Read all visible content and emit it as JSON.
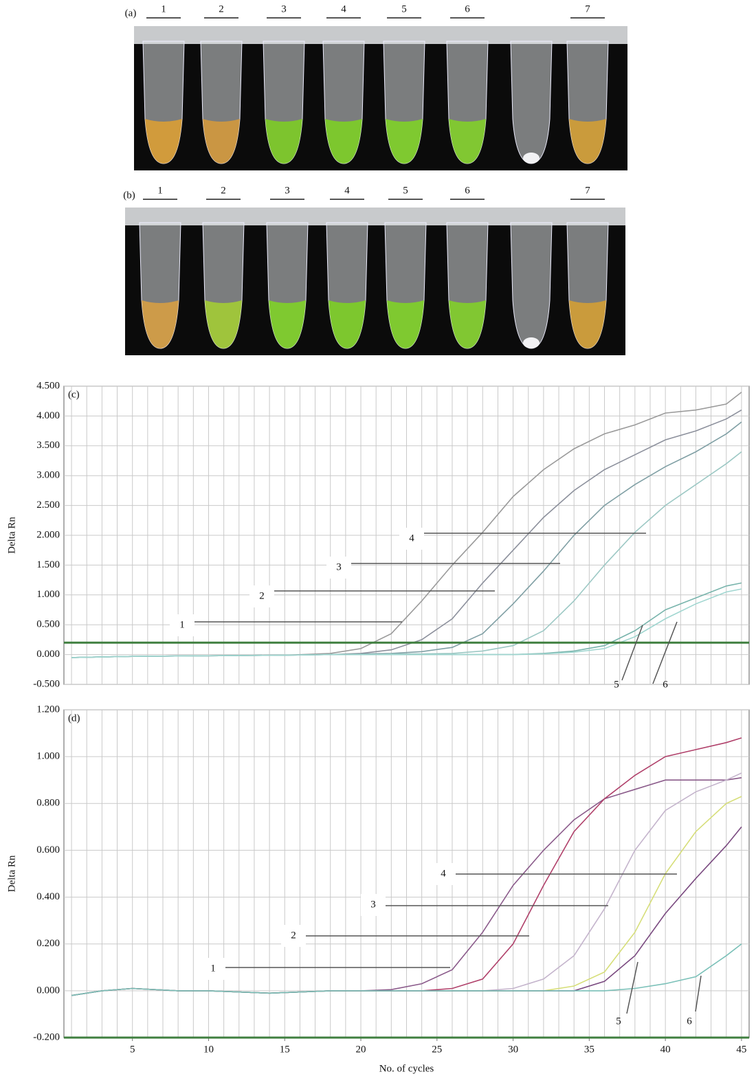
{
  "panels": [
    {
      "label": "(a)",
      "tubes": [
        "1",
        "2",
        "3",
        "4",
        "5",
        "6",
        "7"
      ]
    },
    {
      "label": "(b)",
      "tubes": [
        "1",
        "2",
        "3",
        "4",
        "5",
        "6",
        "7"
      ]
    }
  ],
  "chart_data": [
    {
      "type": "line",
      "label": "(c)",
      "ylabel": "Delta Rn",
      "xlim": [
        0.5,
        45.5
      ],
      "ylim": [
        -0.5,
        4.5
      ],
      "yticks": [
        {
          "value": -0.5,
          "label": "-0.500"
        },
        {
          "value": 0,
          "label": "0.000"
        },
        {
          "value": 0.5,
          "label": "0.500"
        },
        {
          "value": 1,
          "label": "1.000"
        },
        {
          "value": 1.5,
          "label": "1.500"
        },
        {
          "value": 2,
          "label": "2.000"
        },
        {
          "value": 2.5,
          "label": "2.500"
        },
        {
          "value": 3,
          "label": "3.000"
        },
        {
          "value": 3.5,
          "label": "3.500"
        },
        {
          "value": 4,
          "label": "4.000"
        },
        {
          "value": 4.5,
          "label": "4.500"
        }
      ],
      "grid": true,
      "threshold": 0.2,
      "threshold_color": "#3f7f3f",
      "x": [
        1,
        5,
        10,
        15,
        18,
        20,
        22,
        24,
        26,
        28,
        30,
        32,
        34,
        36,
        38,
        40,
        42,
        44,
        45
      ],
      "series": [
        {
          "name": "1",
          "color": "#9a9a9a",
          "values": [
            -0.05,
            -0.03,
            -0.02,
            -0.01,
            0.02,
            0.1,
            0.35,
            0.9,
            1.5,
            2.05,
            2.65,
            3.1,
            3.45,
            3.7,
            3.85,
            4.05,
            4.1,
            4.2,
            4.4
          ]
        },
        {
          "name": "2",
          "color": "#8c909c",
          "values": [
            -0.05,
            -0.03,
            -0.02,
            -0.01,
            0,
            0.02,
            0.08,
            0.25,
            0.6,
            1.2,
            1.75,
            2.3,
            2.75,
            3.1,
            3.35,
            3.6,
            3.75,
            3.95,
            4.1
          ]
        },
        {
          "name": "3",
          "color": "#7f9fa4",
          "values": [
            -0.05,
            -0.03,
            -0.02,
            -0.01,
            0,
            0.01,
            0.02,
            0.05,
            0.12,
            0.35,
            0.85,
            1.4,
            2.0,
            2.5,
            2.85,
            3.15,
            3.4,
            3.7,
            3.9
          ]
        },
        {
          "name": "4",
          "color": "#9cc8c4",
          "values": [
            -0.05,
            -0.03,
            -0.02,
            -0.01,
            0,
            0,
            0.01,
            0.01,
            0.02,
            0.06,
            0.15,
            0.4,
            0.9,
            1.5,
            2.05,
            2.5,
            2.85,
            3.2,
            3.4
          ]
        },
        {
          "name": "5",
          "color": "#78b4ac",
          "values": [
            -0.05,
            -0.03,
            -0.02,
            -0.01,
            0,
            0,
            0,
            0,
            0,
            0,
            0,
            0.02,
            0.06,
            0.15,
            0.4,
            0.75,
            0.95,
            1.15,
            1.2
          ]
        },
        {
          "name": "6",
          "color": "#a0d6d0",
          "values": [
            -0.05,
            -0.03,
            -0.02,
            -0.01,
            0,
            0,
            0,
            0,
            0,
            0,
            0,
            0.01,
            0.04,
            0.1,
            0.3,
            0.6,
            0.85,
            1.05,
            1.1
          ]
        }
      ]
    },
    {
      "type": "line",
      "label": "(d)",
      "ylabel": "Delta Rn",
      "xlabel": "No. of cycles",
      "xlim": [
        0.5,
        45.5
      ],
      "ylim": [
        -0.2,
        1.2
      ],
      "xticks": [
        5,
        10,
        15,
        20,
        25,
        30,
        35,
        40,
        45
      ],
      "yticks": [
        {
          "value": -0.2,
          "label": "-0.200"
        },
        {
          "value": 0,
          "label": "0.000"
        },
        {
          "value": 0.2,
          "label": "0.200"
        },
        {
          "value": 0.4,
          "label": "0.400"
        },
        {
          "value": 0.6,
          "label": "0.600"
        },
        {
          "value": 0.8,
          "label": "0.800"
        },
        {
          "value": 1,
          "label": "1.000"
        },
        {
          "value": 1.2,
          "label": "1.200"
        }
      ],
      "grid": true,
      "threshold": -0.2,
      "threshold_color": "#3f7f3f",
      "x": [
        1,
        3,
        5,
        8,
        10,
        14,
        18,
        20,
        22,
        24,
        26,
        28,
        30,
        32,
        34,
        36,
        38,
        40,
        42,
        44,
        45
      ],
      "series": [
        {
          "name": "1",
          "color": "#8a5a8a",
          "values": [
            -0.02,
            0,
            0.01,
            0,
            0,
            -0.01,
            0,
            0,
            0.005,
            0.03,
            0.09,
            0.25,
            0.45,
            0.6,
            0.73,
            0.82,
            0.86,
            0.9,
            0.9,
            0.9,
            0.91
          ]
        },
        {
          "name": "2",
          "color": "#b0406a",
          "values": [
            -0.02,
            0,
            0.01,
            0,
            0,
            -0.01,
            0,
            0,
            0,
            0,
            0.01,
            0.05,
            0.2,
            0.45,
            0.68,
            0.82,
            0.92,
            1.0,
            1.03,
            1.06,
            1.08
          ]
        },
        {
          "name": "3",
          "color": "#c4b4cc",
          "values": [
            -0.02,
            0,
            0.01,
            0,
            0,
            -0.01,
            0,
            0,
            0,
            0,
            0,
            0,
            0.01,
            0.05,
            0.15,
            0.35,
            0.6,
            0.77,
            0.85,
            0.9,
            0.93
          ]
        },
        {
          "name": "4",
          "color": "#d6de78",
          "values": [
            -0.02,
            0,
            0.01,
            0,
            0,
            -0.01,
            0,
            0,
            0,
            0,
            0,
            0,
            0,
            0,
            0.02,
            0.08,
            0.25,
            0.5,
            0.68,
            0.8,
            0.83
          ]
        },
        {
          "name": "5",
          "color": "#7a4a80",
          "values": [
            -0.02,
            0,
            0.01,
            0,
            0,
            -0.01,
            0,
            0,
            0,
            0,
            0,
            0,
            0,
            0,
            0,
            0.04,
            0.15,
            0.33,
            0.48,
            0.62,
            0.7
          ]
        },
        {
          "name": "6",
          "color": "#7ac0b8",
          "values": [
            -0.02,
            0,
            0.01,
            0,
            0,
            -0.01,
            0,
            0,
            0,
            0,
            0,
            0,
            0,
            0,
            0,
            0,
            0.01,
            0.03,
            0.06,
            0.15,
            0.2
          ]
        }
      ]
    }
  ]
}
